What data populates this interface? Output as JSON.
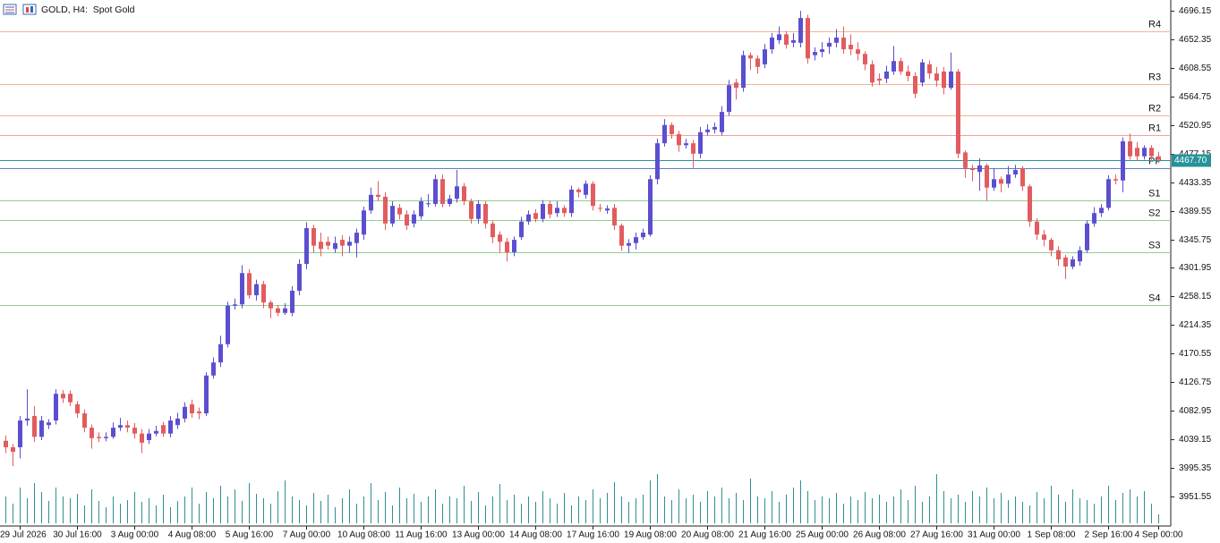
{
  "chart_data": {
    "type": "candlestick",
    "title": "GOLD, H4:  Spot Gold",
    "up_color": "#5b4fd0",
    "down_color": "#e25c5f",
    "volume_color": "#2f8f93",
    "ylim": [
      3907.7,
      4712.6
    ],
    "yticks": [
      3951.55,
      3995.35,
      4039.15,
      4082.95,
      4126.75,
      4170.55,
      4214.35,
      4258.15,
      4301.95,
      4345.75,
      4389.55,
      4433.35,
      4477.15,
      4520.95,
      4564.75,
      4608.55,
      4652.35,
      4696.15
    ],
    "xticks": [
      {
        "value": 2,
        "label": "29 Jul 2026"
      },
      {
        "value": 10,
        "label": "30 Jul 16:00"
      },
      {
        "value": 18,
        "label": "3 Aug 00:00"
      },
      {
        "value": 26,
        "label": "4 Aug 08:00"
      },
      {
        "value": 34,
        "label": "5 Aug 16:00"
      },
      {
        "value": 42,
        "label": "7 Aug 00:00"
      },
      {
        "value": 50,
        "label": "10 Aug 08:00"
      },
      {
        "value": 58,
        "label": "11 Aug 16:00"
      },
      {
        "value": 66,
        "label": "13 Aug 00:00"
      },
      {
        "value": 74,
        "label": "14 Aug 08:00"
      },
      {
        "value": 82,
        "label": "17 Aug 16:00"
      },
      {
        "value": 90,
        "label": "19 Aug 08:00"
      },
      {
        "value": 98,
        "label": "20 Aug 08:00"
      },
      {
        "value": 106,
        "label": "21 Aug 16:00"
      },
      {
        "value": 114,
        "label": "25 Aug 00:00"
      },
      {
        "value": 122,
        "label": "26 Aug 08:00"
      },
      {
        "value": 130,
        "label": "27 Aug 16:00"
      },
      {
        "value": 138,
        "label": "31 Aug 00:00"
      },
      {
        "value": 146,
        "label": "1 Sep 08:00"
      },
      {
        "value": 154,
        "label": "2 Sep 16:00"
      },
      {
        "value": 161,
        "label": "4 Sep 00:00"
      }
    ],
    "levels": [
      {
        "name": "R4",
        "value": 4664,
        "color": "#f5b39a"
      },
      {
        "name": "R3",
        "value": 4584,
        "color": "#f5b39a"
      },
      {
        "name": "R2",
        "value": 4536,
        "color": "#f5b39a"
      },
      {
        "name": "R1",
        "value": 4506,
        "color": "#f2a0a0"
      },
      {
        "name": "PP",
        "value": 4455,
        "color": "#5b7fc0"
      },
      {
        "name": "S1",
        "value": 4405,
        "color": "#8fcf8f"
      },
      {
        "name": "S2",
        "value": 4375,
        "color": "#8fcf8f"
      },
      {
        "name": "S3",
        "value": 4326,
        "color": "#8fcf8f"
      },
      {
        "name": "S4",
        "value": 4245,
        "color": "#8fcf8f"
      }
    ],
    "price_line": {
      "value": 4467.7,
      "label": "4467.70",
      "color": "#26939a"
    },
    "open": [
      4037,
      4027,
      4027,
      4068,
      4075,
      4043,
      4061,
      4068,
      4109,
      4109,
      4093,
      4079,
      4057,
      4043,
      4041,
      4043,
      4057,
      4061,
      4057,
      4048,
      4038,
      4048,
      4061,
      4048,
      4061,
      4071,
      4093,
      4082,
      4079,
      4137,
      4157,
      4185,
      4244,
      4246,
      4294,
      4260,
      4277,
      4249,
      4240,
      4233,
      4233,
      4267,
      4308,
      4363,
      4342,
      4342,
      4331,
      4345,
      4336,
      4340,
      4353,
      4390,
      4414,
      4411,
      4370,
      4394,
      4384,
      4370,
      4381,
      4400,
      4400,
      4438,
      4400,
      4408,
      4427,
      4404,
      4377,
      4400,
      4370,
      4353,
      4342,
      4326,
      4349,
      4373,
      4386,
      4377,
      4400,
      4386,
      4394,
      4386,
      4422,
      4414,
      4431,
      4394,
      4390,
      4394,
      4367,
      4336,
      4340,
      4349,
      4353,
      4438,
      4493,
      4521,
      4507,
      4490,
      4493,
      4477,
      4510,
      4514,
      4510,
      4541,
      4586,
      4578,
      4628,
      4623,
      4614,
      4637,
      4651,
      4660,
      4647,
      4647,
      4685,
      4628,
      4633,
      4641,
      4647,
      4655,
      4644,
      4637,
      4630,
      4614,
      4592,
      4592,
      4603,
      4619,
      4603,
      4596,
      4586,
      4614,
      4600,
      4603,
      4578,
      4603,
      4479,
      4455,
      4449,
      4459,
      4425,
      4438,
      4431,
      4445,
      4455,
      4427,
      4373,
      4353,
      4345,
      4329,
      4318,
      4304,
      4312,
      4329,
      4370,
      4386,
      4394,
      4438,
      4436,
      4496,
      4486,
      4473,
      4486,
      4473
    ],
    "high": [
      4045,
      4032,
      4075,
      4116,
      4090,
      4075,
      4070,
      4116,
      4115,
      4114,
      4098,
      4085,
      4062,
      4050,
      4050,
      4065,
      4072,
      4068,
      4064,
      4055,
      4055,
      4060,
      4066,
      4075,
      4080,
      4096,
      4100,
      4088,
      4142,
      4165,
      4198,
      4250,
      4255,
      4306,
      4300,
      4284,
      4282,
      4252,
      4245,
      4248,
      4274,
      4315,
      4372,
      4368,
      4356,
      4350,
      4350,
      4352,
      4350,
      4362,
      4396,
      4425,
      4435,
      4418,
      4404,
      4400,
      4390,
      4390,
      4410,
      4415,
      4445,
      4445,
      4414,
      4452,
      4432,
      4408,
      4406,
      4404,
      4374,
      4358,
      4348,
      4350,
      4380,
      4390,
      4392,
      4406,
      4405,
      4404,
      4398,
      4428,
      4425,
      4436,
      4435,
      4400,
      4398,
      4400,
      4370,
      4346,
      4356,
      4362,
      4444,
      4500,
      4530,
      4525,
      4512,
      4500,
      4498,
      4518,
      4522,
      4525,
      4550,
      4590,
      4592,
      4635,
      4632,
      4628,
      4645,
      4662,
      4672,
      4665,
      4662,
      4696,
      4690,
      4640,
      4648,
      4655,
      4668,
      4672,
      4660,
      4648,
      4634,
      4620,
      4600,
      4612,
      4642,
      4624,
      4612,
      4602,
      4622,
      4620,
      4610,
      4610,
      4632,
      4607,
      4482,
      4460,
      4470,
      4462,
      4455,
      4442,
      4458,
      4460,
      4458,
      4430,
      4378,
      4360,
      4348,
      4335,
      4322,
      4320,
      4335,
      4375,
      4395,
      4400,
      4444,
      4445,
      4502,
      4508,
      4495,
      4490,
      4490,
      4480
    ],
    "low": [
      4018,
      3998,
      4010,
      4060,
      4035,
      4038,
      4055,
      4062,
      4095,
      4090,
      4072,
      4050,
      4025,
      4035,
      4036,
      4040,
      4052,
      4050,
      4040,
      4018,
      4032,
      4044,
      4043,
      4042,
      4055,
      4065,
      4072,
      4070,
      4075,
      4132,
      4150,
      4180,
      4238,
      4240,
      4255,
      4252,
      4240,
      4225,
      4228,
      4230,
      4228,
      4260,
      4300,
      4325,
      4320,
      4330,
      4325,
      4320,
      4325,
      4318,
      4345,
      4385,
      4405,
      4360,
      4365,
      4376,
      4360,
      4364,
      4376,
      4395,
      4396,
      4395,
      4396,
      4402,
      4398,
      4370,
      4370,
      4362,
      4340,
      4325,
      4312,
      4320,
      4345,
      4368,
      4372,
      4372,
      4378,
      4380,
      4380,
      4380,
      4410,
      4408,
      4390,
      4388,
      4385,
      4360,
      4328,
      4325,
      4330,
      4345,
      4350,
      4430,
      4488,
      4500,
      4480,
      4485,
      4455,
      4470,
      4505,
      4508,
      4505,
      4535,
      4560,
      4572,
      4605,
      4600,
      4608,
      4630,
      4645,
      4638,
      4640,
      4640,
      4615,
      4620,
      4625,
      4630,
      4640,
      4630,
      4628,
      4620,
      4605,
      4580,
      4582,
      4585,
      4598,
      4598,
      4588,
      4562,
      4580,
      4592,
      4580,
      4568,
      4575,
      4470,
      4440,
      4435,
      4420,
      4405,
      4420,
      4418,
      4425,
      4440,
      4420,
      4365,
      4345,
      4335,
      4320,
      4305,
      4285,
      4300,
      4305,
      4325,
      4365,
      4380,
      4390,
      4430,
      4418,
      4468,
      4466,
      4468,
      4465,
      4463
    ],
    "close": [
      4027,
      4020,
      4068,
      4071,
      4043,
      4068,
      4065,
      4109,
      4102,
      4096,
      4079,
      4057,
      4041,
      4041,
      4043,
      4057,
      4061,
      4057,
      4048,
      4034,
      4048,
      4052,
      4048,
      4068,
      4071,
      4089,
      4079,
      4079,
      4137,
      4157,
      4185,
      4244,
      4246,
      4294,
      4260,
      4277,
      4249,
      4240,
      4233,
      4240,
      4267,
      4308,
      4363,
      4336,
      4331,
      4336,
      4340,
      4336,
      4342,
      4356,
      4390,
      4414,
      4411,
      4370,
      4397,
      4384,
      4367,
      4384,
      4404,
      4401,
      4438,
      4400,
      4408,
      4427,
      4404,
      4377,
      4400,
      4370,
      4349,
      4342,
      4326,
      4345,
      4373,
      4384,
      4377,
      4400,
      4384,
      4394,
      4386,
      4422,
      4418,
      4431,
      4397,
      4393,
      4393,
      4367,
      4336,
      4340,
      4349,
      4356,
      4438,
      4493,
      4521,
      4507,
      4490,
      4493,
      4477,
      4510,
      4514,
      4518,
      4541,
      4582,
      4578,
      4628,
      4623,
      4610,
      4637,
      4655,
      4660,
      4644,
      4651,
      4685,
      4623,
      4633,
      4637,
      4647,
      4655,
      4637,
      4637,
      4630,
      4614,
      4586,
      4589,
      4603,
      4619,
      4603,
      4596,
      4569,
      4617,
      4600,
      4589,
      4578,
      4603,
      4477,
      4455,
      4452,
      4459,
      4425,
      4438,
      4431,
      4445,
      4452,
      4427,
      4373,
      4353,
      4345,
      4329,
      4315,
      4304,
      4315,
      4329,
      4370,
      4386,
      4394,
      4438,
      4436,
      4496,
      4473,
      4473,
      4486,
      4473,
      4467.7
    ],
    "volume": [
      30,
      22,
      40,
      28,
      45,
      35,
      25,
      40,
      30,
      28,
      33,
      20,
      38,
      25,
      18,
      30,
      22,
      26,
      35,
      24,
      28,
      20,
      32,
      18,
      25,
      30,
      40,
      22,
      35,
      28,
      42,
      30,
      38,
      25,
      45,
      33,
      28,
      22,
      36,
      48,
      30,
      26,
      20,
      34,
      25,
      32,
      18,
      28,
      38,
      22,
      30,
      45,
      26,
      35,
      20,
      40,
      28,
      33,
      24,
      30,
      38,
      22,
      30,
      28,
      42,
      25,
      35,
      20,
      30,
      44,
      26,
      32,
      22,
      30,
      24,
      36,
      28,
      22,
      34,
      20,
      30,
      26,
      38,
      28,
      34,
      46,
      30,
      24,
      28,
      32,
      48,
      55,
      30,
      26,
      38,
      28,
      32,
      24,
      36,
      30,
      40,
      28,
      34,
      26,
      50,
      30,
      28,
      36,
      24,
      32,
      40,
      48,
      36,
      26,
      30,
      28,
      34,
      22,
      30,
      26,
      35,
      28,
      32,
      24,
      30,
      38,
      26,
      42,
      24,
      30,
      55,
      36,
      28,
      32,
      24,
      36,
      30,
      40,
      28,
      34,
      26,
      30,
      24,
      20,
      35,
      28,
      42,
      32,
      24,
      38,
      28,
      26,
      22,
      30,
      42,
      26,
      34,
      38,
      30,
      36,
      22,
      10
    ]
  }
}
